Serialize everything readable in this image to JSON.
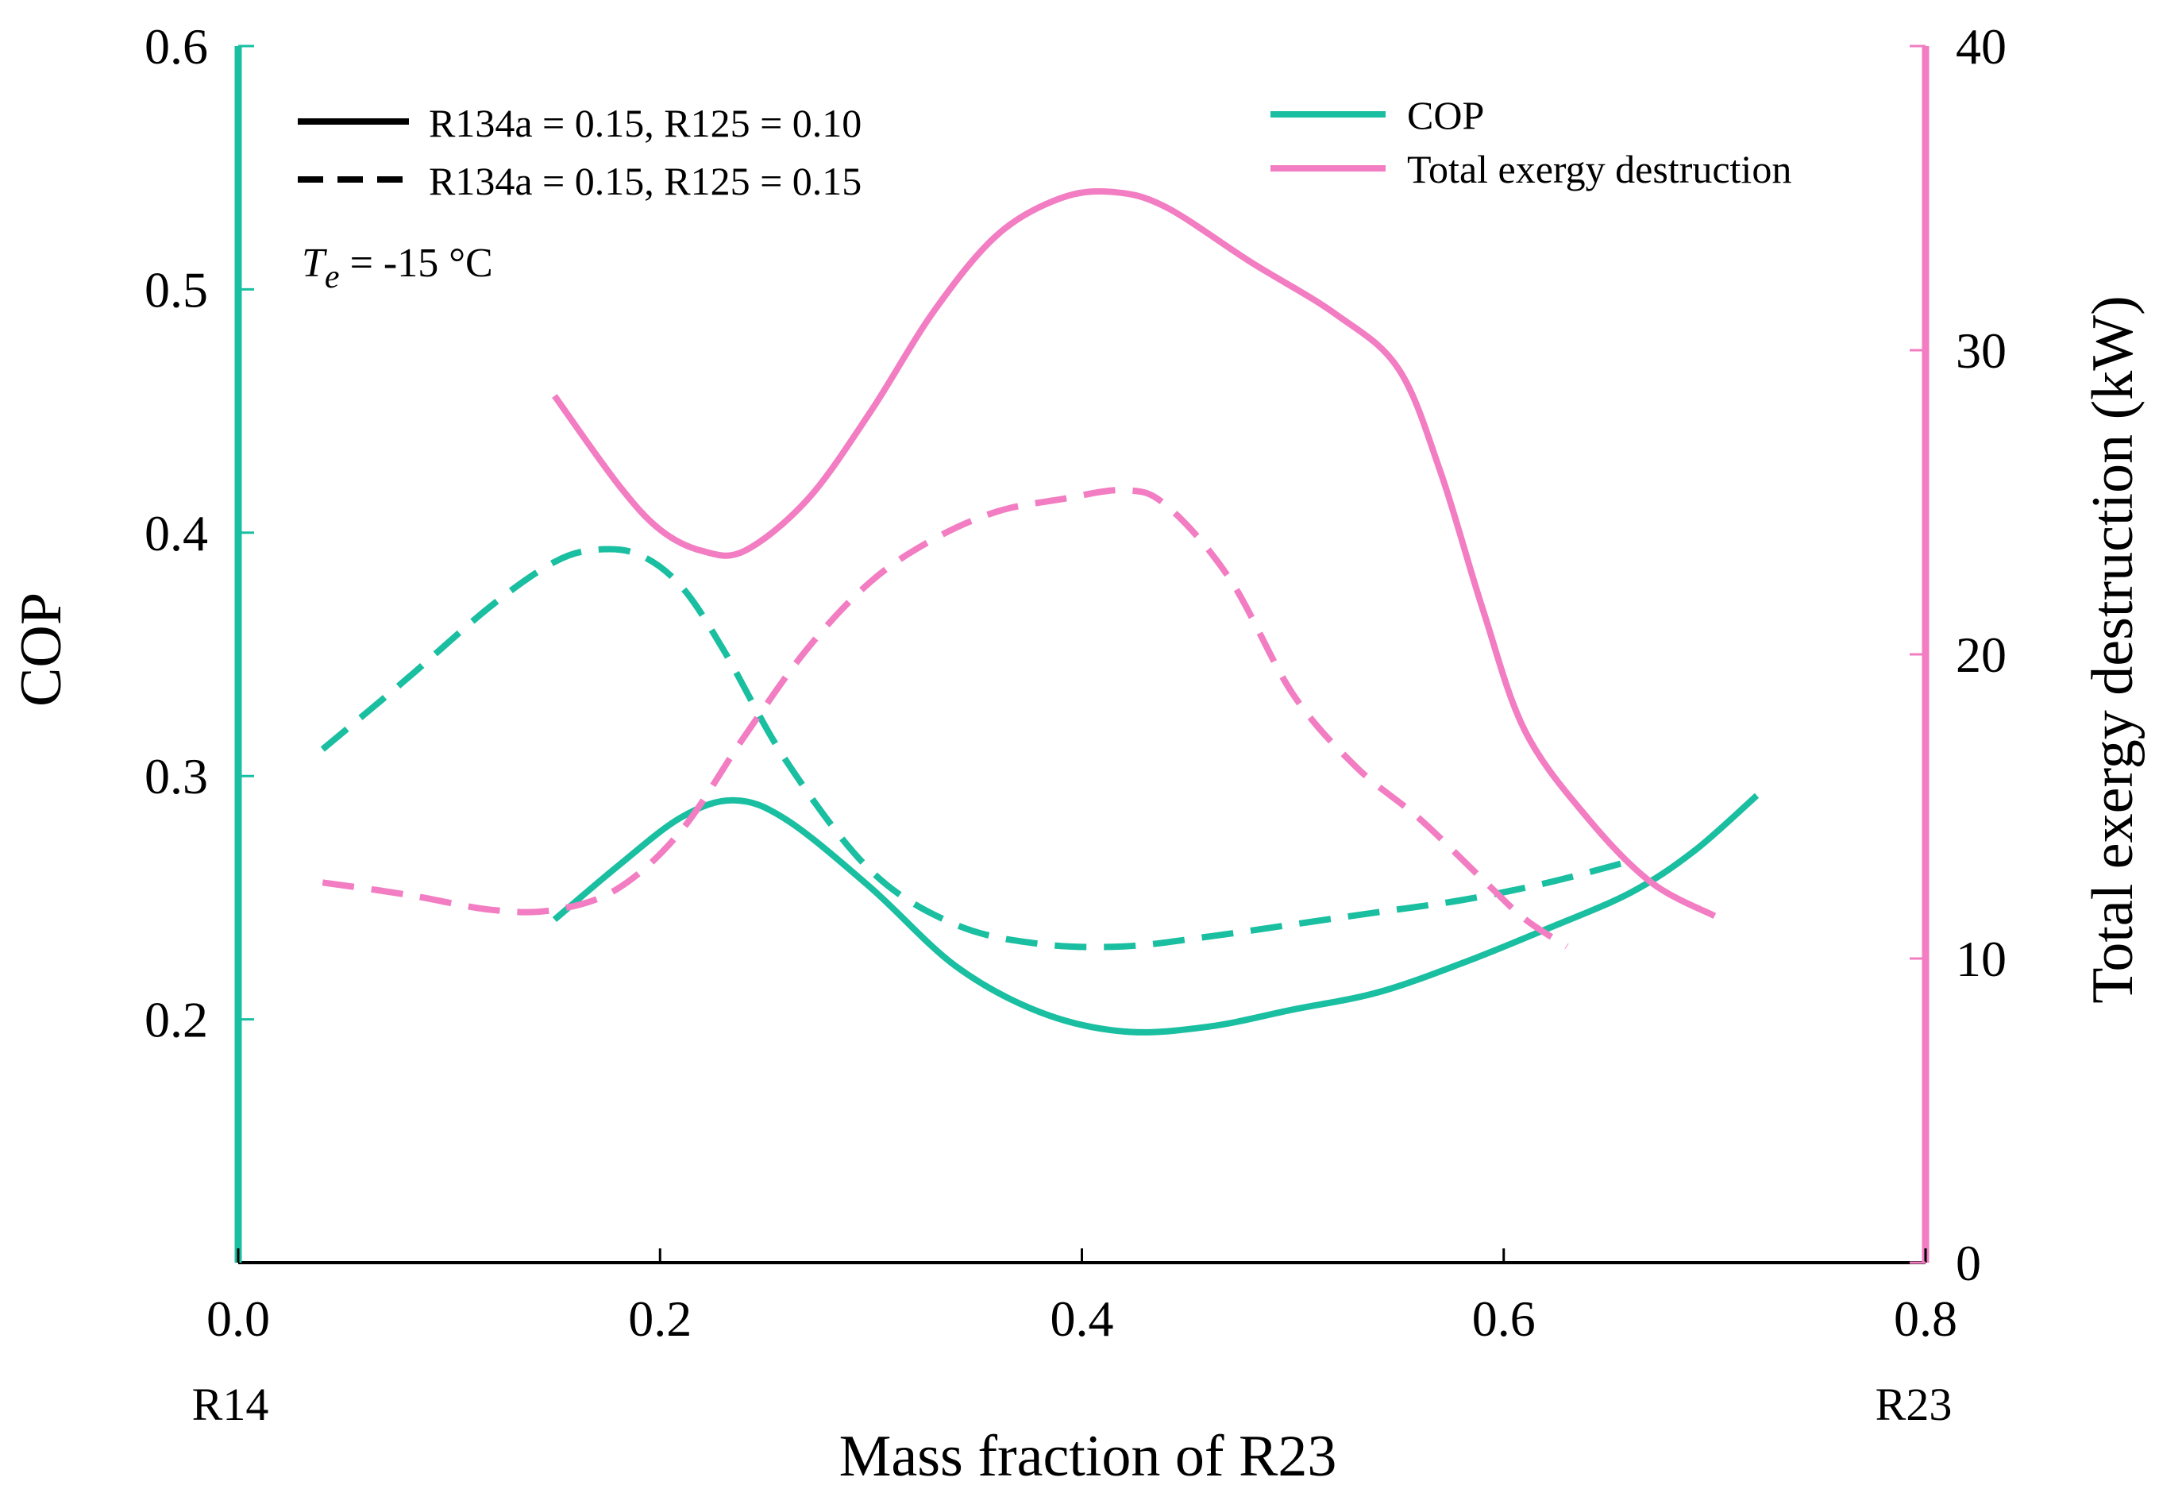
{
  "colors": {
    "cop": "#19BFA0",
    "exergy": "#F27DC2",
    "axis": "#000000",
    "background": "#ffffff"
  },
  "chart_data": {
    "type": "line",
    "title": "",
    "xlabel": "Mass fraction of R23",
    "ylabel": "COP",
    "ylabel_right": "Total exergy destruction (kW)",
    "xlim": [
      0.0,
      0.8
    ],
    "ylim": [
      0.1,
      0.6
    ],
    "ylim_right": [
      0,
      40
    ],
    "grid": false,
    "x_ticks": [
      {
        "value": 0.0,
        "label": "0.0"
      },
      {
        "value": 0.2,
        "label": "0.2"
      },
      {
        "value": 0.4,
        "label": "0.4"
      },
      {
        "value": 0.6,
        "label": "0.6"
      },
      {
        "value": 0.8,
        "label": "0.8"
      }
    ],
    "x_end_labels": {
      "left": "R14",
      "right": "R23"
    },
    "y_ticks": [
      {
        "value": 0.2,
        "label": "0.2"
      },
      {
        "value": 0.3,
        "label": "0.3"
      },
      {
        "value": 0.4,
        "label": "0.4"
      },
      {
        "value": 0.5,
        "label": "0.5"
      },
      {
        "value": 0.6,
        "label": "0.6"
      }
    ],
    "y_right_ticks": [
      {
        "value": 0,
        "label": "0"
      },
      {
        "value": 10,
        "label": "10"
      },
      {
        "value": 20,
        "label": "20"
      },
      {
        "value": 30,
        "label": "30"
      },
      {
        "value": 40,
        "label": "40"
      }
    ],
    "annotation": {
      "symbol": "T",
      "subscript": "e",
      "rest": " = -15 °C"
    },
    "legend_linestyle": [
      {
        "label": "R134a = 0.15, R125 = 0.10",
        "dash": "solid"
      },
      {
        "label": "R134a = 0.15, R125 = 0.15",
        "dash": "dashed"
      }
    ],
    "legend_color": [
      {
        "label": "COP",
        "color_key": "cop"
      },
      {
        "label": "Total exergy destruction",
        "color_key": "exergy"
      }
    ],
    "series": [
      {
        "name": "COP (R134a = 0.15, R125 = 0.10)",
        "axis": "left",
        "color_key": "cop",
        "dash": "solid",
        "x": [
          0.15,
          0.18,
          0.21,
          0.235,
          0.26,
          0.3,
          0.34,
          0.38,
          0.42,
          0.46,
          0.5,
          0.54,
          0.58,
          0.62,
          0.66,
          0.69,
          0.72
        ],
        "y": [
          0.241,
          0.263,
          0.283,
          0.29,
          0.282,
          0.254,
          0.222,
          0.203,
          0.195,
          0.197,
          0.204,
          0.211,
          0.223,
          0.237,
          0.252,
          0.269,
          0.292
        ]
      },
      {
        "name": "COP (R134a = 0.15, R125 = 0.15)",
        "axis": "left",
        "color_key": "cop",
        "dash": "dashed",
        "x": [
          0.04,
          0.08,
          0.12,
          0.15,
          0.17,
          0.19,
          0.21,
          0.23,
          0.26,
          0.3,
          0.34,
          0.38,
          0.42,
          0.46,
          0.5,
          0.54,
          0.58,
          0.62,
          0.66
        ],
        "y": [
          0.311,
          0.34,
          0.37,
          0.388,
          0.393,
          0.391,
          0.378,
          0.352,
          0.306,
          0.261,
          0.239,
          0.231,
          0.23,
          0.234,
          0.239,
          0.244,
          0.249,
          0.256,
          0.265
        ]
      },
      {
        "name": "Total exergy destruction (R134a = 0.15, R125 = 0.10)",
        "axis": "right",
        "color_key": "exergy",
        "dash": "solid",
        "x": [
          0.15,
          0.18,
          0.2,
          0.22,
          0.24,
          0.27,
          0.3,
          0.33,
          0.36,
          0.39,
          0.415,
          0.44,
          0.48,
          0.52,
          0.55,
          0.57,
          0.59,
          0.61,
          0.64,
          0.67,
          0.7
        ],
        "y": [
          28.5,
          25.6,
          24.1,
          23.4,
          23.4,
          25.1,
          28.0,
          31.3,
          33.8,
          35.0,
          35.2,
          34.7,
          32.9,
          31.2,
          29.4,
          26.0,
          21.5,
          17.5,
          14.6,
          12.5,
          11.4
        ]
      },
      {
        "name": "Total exergy destruction (R134a = 0.15, R125 = 0.15)",
        "axis": "right",
        "color_key": "exergy",
        "dash": "dashed",
        "x": [
          0.04,
          0.08,
          0.12,
          0.15,
          0.18,
          0.21,
          0.24,
          0.27,
          0.3,
          0.33,
          0.36,
          0.39,
          0.42,
          0.44,
          0.47,
          0.5,
          0.53,
          0.56,
          0.59,
          0.61,
          0.63
        ],
        "y": [
          12.5,
          12.1,
          11.6,
          11.6,
          12.3,
          14.2,
          17.3,
          20.2,
          22.4,
          23.8,
          24.7,
          25.1,
          25.4,
          24.9,
          22.5,
          18.7,
          16.3,
          14.6,
          12.6,
          11.3,
          10.4
        ]
      }
    ]
  }
}
